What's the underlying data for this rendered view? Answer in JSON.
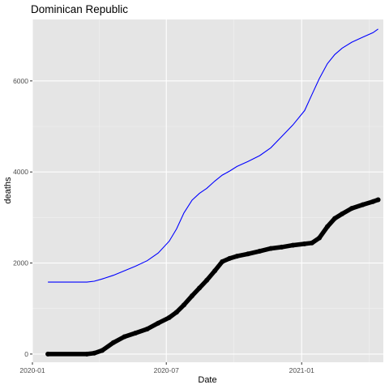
{
  "chart_data": {
    "type": "line",
    "title": "Dominican Republic",
    "xlabel": "Date",
    "ylabel": "deaths",
    "xlim": [
      "2020-01-01",
      "2021-04-22"
    ],
    "ylim": [
      -180,
      7350
    ],
    "x_ticks": [
      "2020-01-01",
      "2020-07-01",
      "2021-01-01"
    ],
    "x_tick_labels": [
      "2020-01",
      "2020-07",
      "2021-01"
    ],
    "y_ticks": [
      0,
      2000,
      4000,
      6000
    ],
    "y_tick_labels": [
      "0",
      "2000",
      "4000",
      "6000"
    ],
    "grid": true,
    "legend": "none",
    "background": "#E5E5E5",
    "series": [
      {
        "style": "line",
        "color": "#0000FF",
        "x": [
          "2020-01-22",
          "2020-03-15",
          "2020-03-25",
          "2020-04-05",
          "2020-04-20",
          "2020-05-05",
          "2020-05-20",
          "2020-06-05",
          "2020-06-20",
          "2020-07-05",
          "2020-07-15",
          "2020-07-25",
          "2020-08-05",
          "2020-08-15",
          "2020-08-25",
          "2020-09-05",
          "2020-09-15",
          "2020-09-25",
          "2020-10-05",
          "2020-10-20",
          "2020-11-05",
          "2020-11-20",
          "2020-12-05",
          "2020-12-20",
          "2021-01-05",
          "2021-01-15",
          "2021-01-25",
          "2021-02-05",
          "2021-02-15",
          "2021-02-25",
          "2021-03-10",
          "2021-03-25",
          "2021-04-08",
          "2021-04-15"
        ],
        "values": [
          1580,
          1580,
          1600,
          1650,
          1730,
          1830,
          1930,
          2050,
          2220,
          2480,
          2750,
          3100,
          3380,
          3530,
          3640,
          3800,
          3930,
          4020,
          4120,
          4230,
          4360,
          4530,
          4780,
          5030,
          5350,
          5700,
          6050,
          6380,
          6580,
          6720,
          6850,
          6960,
          7060,
          7140
        ]
      },
      {
        "style": "points",
        "color": "#000000",
        "x": [
          "2020-01-22",
          "2020-03-15",
          "2020-03-25",
          "2020-04-05",
          "2020-04-20",
          "2020-05-05",
          "2020-05-20",
          "2020-06-05",
          "2020-06-20",
          "2020-07-05",
          "2020-07-15",
          "2020-07-25",
          "2020-08-05",
          "2020-08-15",
          "2020-08-25",
          "2020-09-05",
          "2020-09-15",
          "2020-09-25",
          "2020-10-05",
          "2020-10-20",
          "2020-11-05",
          "2020-11-20",
          "2020-12-05",
          "2020-12-20",
          "2021-01-05",
          "2021-01-15",
          "2021-01-25",
          "2021-02-05",
          "2021-02-15",
          "2021-02-25",
          "2021-03-10",
          "2021-03-25",
          "2021-04-08",
          "2021-04-15"
        ],
        "values": [
          0,
          0,
          20,
          80,
          250,
          380,
          460,
          550,
          680,
          800,
          920,
          1080,
          1280,
          1450,
          1620,
          1830,
          2030,
          2100,
          2150,
          2200,
          2260,
          2320,
          2350,
          2390,
          2420,
          2440,
          2550,
          2800,
          2980,
          3080,
          3200,
          3280,
          3350,
          3390
        ]
      }
    ]
  }
}
